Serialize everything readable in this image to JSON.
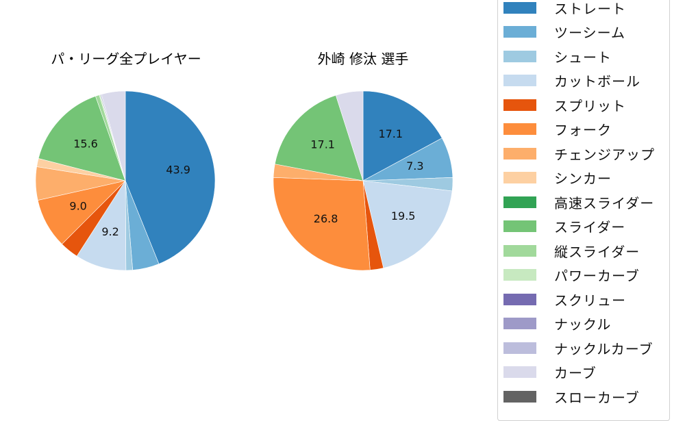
{
  "charts": [
    {
      "title": "パ・リーグ全プレイヤー"
    },
    {
      "title": "外崎 修汰  選手"
    }
  ],
  "legend": {
    "items": [
      {
        "label": "ストレート",
        "color": "#3182bd"
      },
      {
        "label": "ツーシーム",
        "color": "#6baed6"
      },
      {
        "label": "シュート",
        "color": "#9ecae1"
      },
      {
        "label": "カットボール",
        "color": "#c6dbef"
      },
      {
        "label": "スプリット",
        "color": "#e6550d"
      },
      {
        "label": "フォーク",
        "color": "#fd8d3c"
      },
      {
        "label": "チェンジアップ",
        "color": "#fdae6b"
      },
      {
        "label": "シンカー",
        "color": "#fdd0a2"
      },
      {
        "label": "高速スライダー",
        "color": "#31a354"
      },
      {
        "label": "スライダー",
        "color": "#74c476"
      },
      {
        "label": "縦スライダー",
        "color": "#a1d99b"
      },
      {
        "label": "パワーカーブ",
        "color": "#c7e9c0"
      },
      {
        "label": "スクリュー",
        "color": "#756bb1"
      },
      {
        "label": "ナックル",
        "color": "#9e9ac8"
      },
      {
        "label": "ナックルカーブ",
        "color": "#bcbddc"
      },
      {
        "label": "カーブ",
        "color": "#dadaeb"
      },
      {
        "label": "スローカーブ",
        "color": "#636363"
      }
    ]
  },
  "chart_data": [
    {
      "type": "pie",
      "title": "パ・リーグ全プレイヤー",
      "start_angle": 90,
      "direction": "clockwise",
      "categories": [
        "ストレート",
        "ツーシーム",
        "シュート",
        "カットボール",
        "スプリット",
        "フォーク",
        "チェンジアップ",
        "シンカー",
        "高速スライダー",
        "スライダー",
        "縦スライダー",
        "パワーカーブ",
        "スクリュー",
        "ナックル",
        "ナックルカーブ",
        "カーブ",
        "スローカーブ"
      ],
      "values": [
        43.9,
        4.8,
        1.2,
        9.2,
        3.4,
        9.0,
        6.0,
        1.5,
        0.0,
        15.6,
        0.7,
        0.2,
        0.0,
        0.0,
        0.2,
        4.3,
        0.0
      ],
      "labels_shown": {
        "ストレート": "43.9",
        "カットボール": "9.2",
        "フォーク": "9.0",
        "スライダー": "15.6"
      }
    },
    {
      "type": "pie",
      "title": "外崎 修汰  選手",
      "start_angle": 90,
      "direction": "clockwise",
      "categories": [
        "ストレート",
        "ツーシーム",
        "シュート",
        "カットボール",
        "スプリット",
        "フォーク",
        "チェンジアップ",
        "シンカー",
        "高速スライダー",
        "スライダー",
        "縦スライダー",
        "パワーカーブ",
        "スクリュー",
        "ナックル",
        "ナックルカーブ",
        "カーブ",
        "スローカーブ"
      ],
      "values": [
        17.1,
        7.3,
        2.4,
        19.5,
        2.4,
        26.8,
        2.4,
        0.0,
        0.0,
        17.1,
        0.0,
        0.0,
        0.0,
        0.0,
        0.0,
        4.9,
        0.0
      ],
      "labels_shown": {
        "ストレート": "17.1",
        "ツーシーム": "7.3",
        "カットボール": "19.5",
        "フォーク": "26.8",
        "スライダー": "17.1"
      }
    }
  ]
}
